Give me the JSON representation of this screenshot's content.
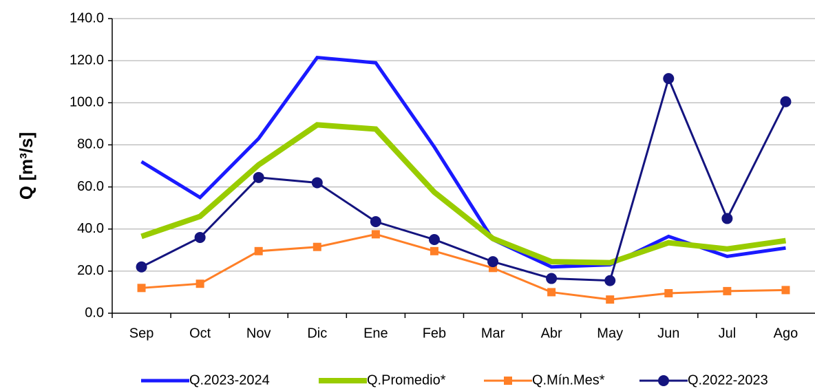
{
  "chart_data": {
    "type": "line",
    "y_label": "Q [m³/s]",
    "categories": [
      "Sep",
      "Oct",
      "Nov",
      "Dic",
      "Ene",
      "Feb",
      "Mar",
      "Abr",
      "May",
      "Jun",
      "Jul",
      "Ago"
    ],
    "ylim": [
      0,
      140
    ],
    "yticks": [
      {
        "value": 0,
        "label": "0.0"
      },
      {
        "value": 20,
        "label": "20.0"
      },
      {
        "value": 40,
        "label": "40.0"
      },
      {
        "value": 60,
        "label": "60.0"
      },
      {
        "value": 80,
        "label": "80.0"
      },
      {
        "value": 100,
        "label": "100.0"
      },
      {
        "value": 120,
        "label": "120.0"
      },
      {
        "value": 140,
        "label": "140.0"
      }
    ],
    "grid": true,
    "legend": "bottom",
    "series": [
      {
        "name": "Q.2023-2024",
        "color": "#1a1aff",
        "width": 5,
        "marker": "none",
        "values": [
          72,
          55,
          83,
          121.5,
          119,
          79,
          35,
          22,
          23,
          36.5,
          27,
          31
        ]
      },
      {
        "name": "Q.Promedio*",
        "color": "#99cc00",
        "width": 8,
        "marker": "none",
        "values": [
          36.5,
          46,
          70.5,
          89.5,
          87.5,
          57.5,
          35.5,
          24.5,
          24,
          33.5,
          30.5,
          34.5
        ]
      },
      {
        "name": "Q.Mín.Mes*",
        "color": "#ff7f27",
        "width": 3,
        "marker": "square",
        "values": [
          12,
          14,
          29.5,
          31.5,
          37.5,
          29.5,
          21.5,
          10,
          6.5,
          9.5,
          10.5,
          11
        ]
      },
      {
        "name": "Q.2022-2023",
        "color": "#14147f",
        "width": 3,
        "marker": "circle",
        "values": [
          22,
          36,
          64.5,
          62,
          43.5,
          35,
          24.5,
          16.5,
          15.5,
          111.5,
          45,
          100.5
        ]
      }
    ]
  }
}
